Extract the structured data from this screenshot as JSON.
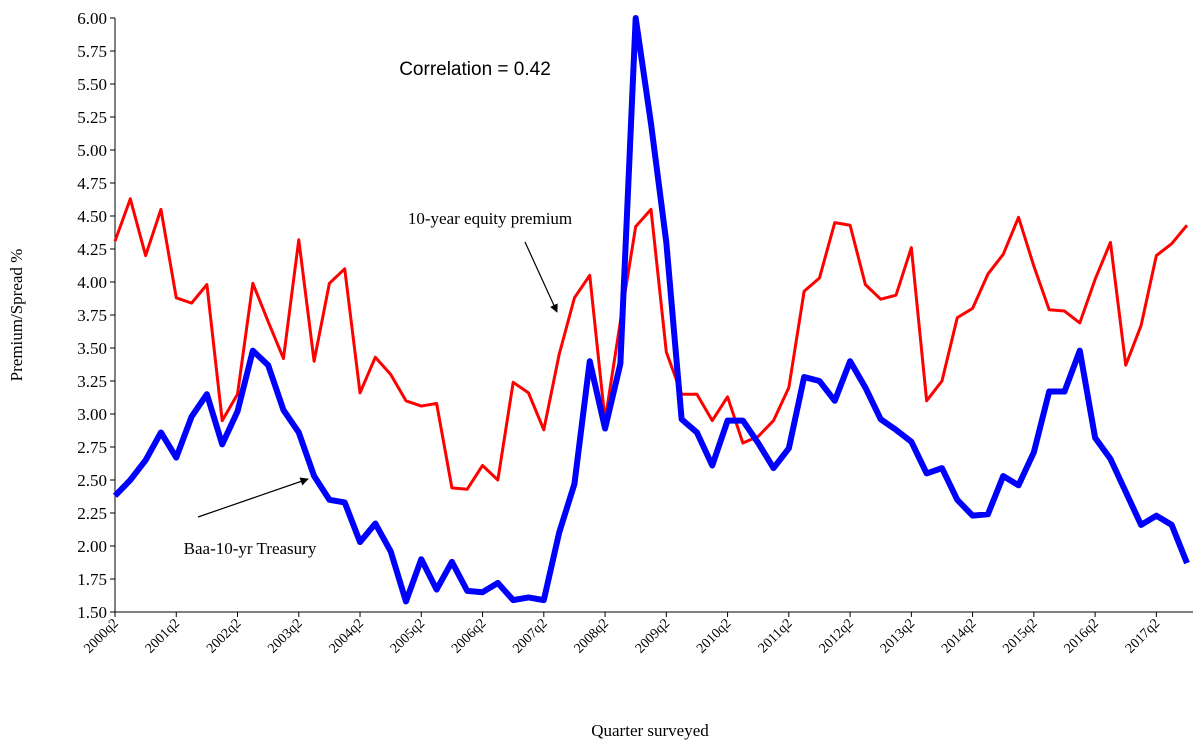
{
  "chart_data": {
    "type": "line",
    "annotations": [
      "Correlation = 0.42"
    ],
    "xlabel": "Quarter surveyed",
    "ylabel": "Premium/Spread %",
    "categories": [
      "2000q2",
      null,
      null,
      null,
      "2001q2",
      null,
      null,
      null,
      "2002q2",
      null,
      null,
      null,
      "2003q2",
      null,
      null,
      null,
      "2004q2",
      null,
      null,
      null,
      "2005q2",
      null,
      null,
      null,
      "2006q2",
      null,
      null,
      null,
      "2007q2",
      null,
      null,
      null,
      "2008q2",
      null,
      null,
      null,
      "2009q2",
      null,
      null,
      null,
      "2010q2",
      null,
      null,
      null,
      "2011q2",
      null,
      null,
      null,
      "2012q2",
      null,
      null,
      null,
      "2013q2",
      null,
      null,
      null,
      "2014q2",
      null,
      null,
      null,
      "2015q2",
      null,
      null,
      null,
      "2016q2",
      null,
      null,
      null,
      "2017q2",
      null,
      null
    ],
    "series": [
      {
        "name": "10-year equity premium",
        "color": "#ff0000",
        "width": 3,
        "values": [
          4.31,
          4.63,
          4.2,
          4.55,
          3.88,
          3.84,
          3.98,
          2.95,
          3.15,
          3.99,
          3.7,
          3.42,
          4.32,
          3.4,
          3.99,
          4.1,
          3.16,
          3.43,
          3.3,
          3.1,
          3.06,
          3.08,
          2.44,
          2.43,
          2.61,
          2.5,
          3.24,
          3.16,
          2.88,
          3.45,
          3.88,
          4.05,
          2.95,
          3.7,
          4.42,
          4.55,
          3.47,
          3.15,
          3.15,
          2.95,
          3.13,
          2.78,
          2.83,
          2.95,
          3.2,
          3.93,
          4.03,
          4.45,
          4.43,
          3.98,
          3.87,
          3.9,
          4.26,
          3.1,
          3.25,
          3.73,
          3.8,
          4.06,
          4.21,
          4.49,
          4.12,
          3.79,
          3.78,
          3.69,
          4.02,
          4.3,
          3.37,
          3.67,
          4.2,
          4.29,
          4.43
        ]
      },
      {
        "name": "Baa-10-yr Treasury",
        "color": "#0000ff",
        "width": 6,
        "values": [
          2.38,
          2.5,
          2.65,
          2.86,
          2.67,
          2.98,
          3.15,
          2.77,
          3.02,
          3.48,
          3.37,
          3.03,
          2.86,
          2.53,
          2.35,
          2.33,
          2.03,
          2.17,
          1.96,
          1.58,
          1.9,
          1.67,
          1.88,
          1.66,
          1.65,
          1.72,
          1.59,
          1.61,
          1.59,
          2.1,
          2.47,
          3.4,
          2.89,
          3.38,
          6.0,
          5.2,
          4.3,
          2.96,
          2.86,
          2.61,
          2.95,
          2.95,
          2.78,
          2.59,
          2.74,
          3.28,
          3.25,
          3.1,
          3.4,
          3.2,
          2.96,
          2.88,
          2.79,
          2.55,
          2.59,
          2.35,
          2.23,
          2.24,
          2.53,
          2.46,
          2.71,
          3.17,
          3.17,
          3.48,
          2.82,
          2.66,
          2.41,
          2.16,
          2.23,
          2.16,
          1.87
        ]
      }
    ],
    "ylim": [
      1.5,
      6
    ],
    "yticks": [
      {
        "value": 1.5,
        "label": "1.50"
      },
      {
        "value": 1.75,
        "label": "1.75"
      },
      {
        "value": 2,
        "label": "2.00"
      },
      {
        "value": 2.25,
        "label": "2.25"
      },
      {
        "value": 2.5,
        "label": "2.50"
      },
      {
        "value": 2.75,
        "label": "2.75"
      },
      {
        "value": 3,
        "label": "3.00"
      },
      {
        "value": 3.25,
        "label": "3.25"
      },
      {
        "value": 3.5,
        "label": "3.50"
      },
      {
        "value": 3.75,
        "label": "3.75"
      },
      {
        "value": 4,
        "label": "4.00"
      },
      {
        "value": 4.25,
        "label": "4.25"
      },
      {
        "value": 4.5,
        "label": "4.50"
      },
      {
        "value": 4.75,
        "label": "4.75"
      },
      {
        "value": 5,
        "label": "5.00"
      },
      {
        "value": 5.25,
        "label": "5.25"
      },
      {
        "value": 5.5,
        "label": "5.50"
      },
      {
        "value": 5.75,
        "label": "5.75"
      },
      {
        "value": 6,
        "label": "6.00"
      }
    ],
    "grid": false
  }
}
